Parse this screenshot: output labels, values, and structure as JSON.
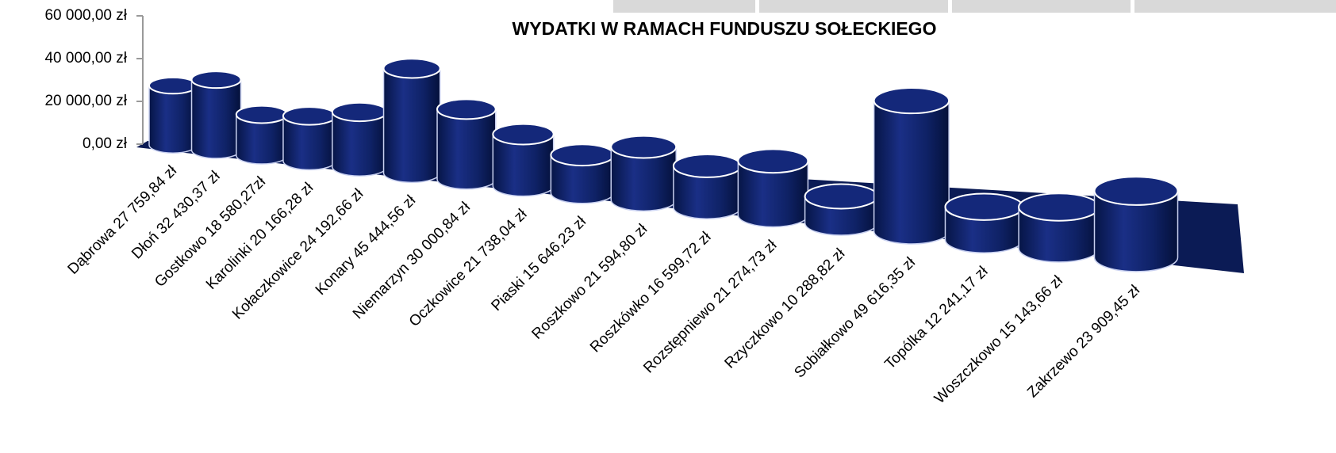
{
  "chart_data": {
    "type": "bar",
    "title": "WYDATKI W RAMACH FUNDUSZU SOŁECKIEGO",
    "categories": [
      "Dąbrowa 27 759,84 zł",
      "Dłoń 32 430,37 zł",
      "Gostkowo 18 580,27zł",
      "Karolinki 20 166,28 zł",
      "Kołaczkowice 24 192,66 zł",
      "Konary 45 444,56 zł",
      "Niemarzyn 30 000,84 zł",
      "Oczkowice 21 738,04 zł",
      "Piaski 15 646,23 zł",
      "Roszkowo 21 594,80 zł",
      "Roszkówko 16 599,72 zł",
      "Rozstępniewo 21 274,73 zł",
      "Rzyczkowo 10 288,82 zł",
      "Sobiałkowo 49 616,35 zł",
      "Topólka 12 241,17 zł",
      "Woszczkowo 15 143,66 zł",
      "Zakrzewo 23 909,45 zł"
    ],
    "values": [
      27759.84,
      32430.37,
      18580.27,
      20166.28,
      24192.66,
      45444.56,
      30000.84,
      21738.04,
      15646.23,
      21594.8,
      16599.72,
      21274.73,
      10288.82,
      49616.35,
      12241.17,
      15143.66,
      23909.45
    ],
    "color": "#0f2266",
    "ylim": [
      0,
      60000
    ],
    "yticks": [
      {
        "value": 0,
        "label": "0,00 zł"
      },
      {
        "value": 20000,
        "label": "20 000,00 zł"
      },
      {
        "value": 40000,
        "label": "40 000,00 zł"
      },
      {
        "value": 60000,
        "label": "60 000,00 zł"
      }
    ]
  }
}
